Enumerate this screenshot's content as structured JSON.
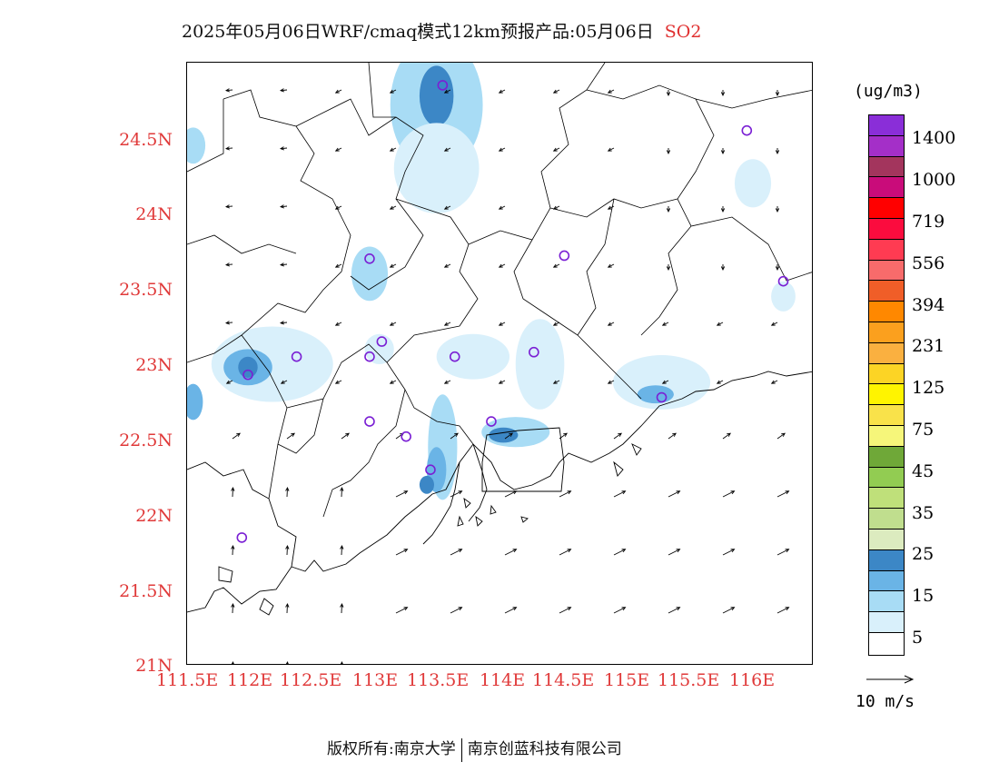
{
  "title": {
    "text": "2025年05月06日WRF/cmaq模式12km预报产品:05月06日",
    "variable": "SO2"
  },
  "axes": {
    "y_labels": [
      "24.5N",
      "24N",
      "23.5N",
      "23N",
      "22.5N",
      "22N",
      "21.5N",
      "21N"
    ],
    "x_labels": [
      "111.5E",
      "112E",
      "112.5E",
      "113E",
      "113.5E",
      "114E",
      "114.5E",
      "115E",
      "115.5E",
      "116E"
    ],
    "lon_range": [
      111.5,
      116.65
    ],
    "lat_range": [
      21.0,
      25.0
    ]
  },
  "colorbar": {
    "unit": "(ug/m3)",
    "colors": [
      "#ffffff",
      "#d9f0fb",
      "#a8dcf5",
      "#6ab4e6",
      "#3c87c6",
      "#dcebbf",
      "#c0de8e",
      "#bfe07a",
      "#92cc52",
      "#6fa838",
      "#f6f67a",
      "#f9e24a",
      "#fff400",
      "#fcd425",
      "#fab040",
      "#fba01e",
      "#ff8800",
      "#f05e28",
      "#f86b6b",
      "#ff3b52",
      "#fb0c3e",
      "#ff0000",
      "#c90c7a",
      "#a3355d",
      "#a42fc8",
      "#8a2ed8"
    ],
    "labels": [
      "5",
      "15",
      "25",
      "35",
      "45",
      "75",
      "125",
      "231",
      "394",
      "556",
      "719",
      "1000",
      "1400"
    ]
  },
  "vector_reference": {
    "label": "10 m/s"
  },
  "stations": [
    [
      113.6,
      24.85
    ],
    [
      116.1,
      24.55
    ],
    [
      113.0,
      23.7
    ],
    [
      114.6,
      23.72
    ],
    [
      116.4,
      23.55
    ],
    [
      112.4,
      23.05
    ],
    [
      112.0,
      22.93
    ],
    [
      113.1,
      23.15
    ],
    [
      113.0,
      23.05
    ],
    [
      113.7,
      23.05
    ],
    [
      114.35,
      23.08
    ],
    [
      115.4,
      22.78
    ],
    [
      113.0,
      22.62
    ],
    [
      113.3,
      22.52
    ],
    [
      114.0,
      22.62
    ],
    [
      113.5,
      22.3
    ],
    [
      111.95,
      21.85
    ]
  ],
  "plumes": [
    {
      "lon": 113.55,
      "lat": 24.72,
      "rx": 0.38,
      "ry": 0.45,
      "level": 2
    },
    {
      "lon": 113.55,
      "lat": 24.78,
      "rx": 0.14,
      "ry": 0.2,
      "level": 4
    },
    {
      "lon": 113.55,
      "lat": 24.3,
      "rx": 0.35,
      "ry": 0.3,
      "level": 1
    },
    {
      "lon": 111.55,
      "lat": 24.45,
      "rx": 0.1,
      "ry": 0.12,
      "level": 2
    },
    {
      "lon": 112.2,
      "lat": 23.0,
      "rx": 0.5,
      "ry": 0.25,
      "level": 1
    },
    {
      "lon": 112.0,
      "lat": 22.98,
      "rx": 0.2,
      "ry": 0.12,
      "level": 3
    },
    {
      "lon": 112.0,
      "lat": 22.98,
      "rx": 0.08,
      "ry": 0.07,
      "level": 4
    },
    {
      "lon": 111.55,
      "lat": 22.75,
      "rx": 0.08,
      "ry": 0.12,
      "level": 3
    },
    {
      "lon": 113.0,
      "lat": 23.6,
      "rx": 0.15,
      "ry": 0.18,
      "level": 2
    },
    {
      "lon": 113.08,
      "lat": 23.1,
      "rx": 0.12,
      "ry": 0.1,
      "level": 1
    },
    {
      "lon": 113.85,
      "lat": 23.05,
      "rx": 0.3,
      "ry": 0.15,
      "level": 1
    },
    {
      "lon": 114.4,
      "lat": 23.0,
      "rx": 0.2,
      "ry": 0.3,
      "level": 1
    },
    {
      "lon": 115.4,
      "lat": 22.88,
      "rx": 0.4,
      "ry": 0.18,
      "level": 1
    },
    {
      "lon": 115.35,
      "lat": 22.8,
      "rx": 0.15,
      "ry": 0.06,
      "level": 3
    },
    {
      "lon": 116.15,
      "lat": 24.2,
      "rx": 0.15,
      "ry": 0.16,
      "level": 1
    },
    {
      "lon": 116.4,
      "lat": 23.45,
      "rx": 0.1,
      "ry": 0.1,
      "level": 1
    },
    {
      "lon": 113.6,
      "lat": 22.45,
      "rx": 0.12,
      "ry": 0.35,
      "level": 2
    },
    {
      "lon": 113.55,
      "lat": 22.3,
      "rx": 0.08,
      "ry": 0.15,
      "level": 3
    },
    {
      "lon": 113.47,
      "lat": 22.2,
      "rx": 0.06,
      "ry": 0.06,
      "level": 4
    },
    {
      "lon": 114.2,
      "lat": 22.55,
      "rx": 0.28,
      "ry": 0.1,
      "level": 2
    },
    {
      "lon": 114.1,
      "lat": 22.53,
      "rx": 0.12,
      "ry": 0.05,
      "level": 4
    }
  ]
}
